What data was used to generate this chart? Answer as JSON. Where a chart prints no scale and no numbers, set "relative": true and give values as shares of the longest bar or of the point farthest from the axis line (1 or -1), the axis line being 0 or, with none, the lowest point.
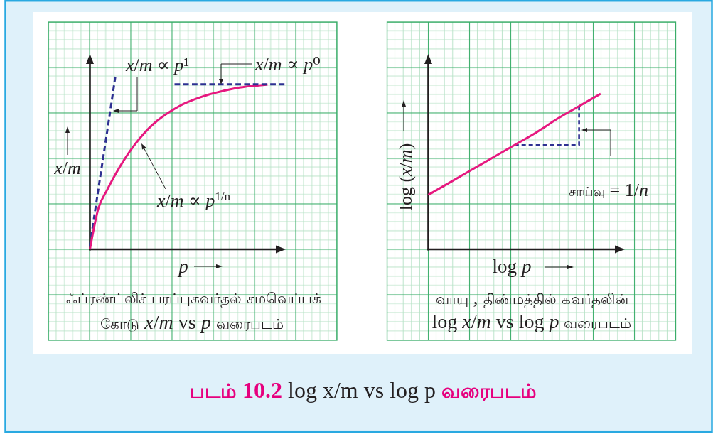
{
  "chart_data": [
    {
      "type": "line",
      "relative": true,
      "xlabel": "p",
      "ylabel": "x/m",
      "categories": [
        null,
        null,
        null,
        null,
        null,
        null,
        null,
        null,
        null,
        null,
        null,
        null,
        null,
        null,
        null,
        null,
        null,
        null,
        null,
        null,
        null,
        null,
        null,
        null
      ],
      "series": [
        {
          "name": "x/m ∝ p¹",
          "color": "#2e3192",
          "line_style": "dashed",
          "values": [
            0.02,
            0.35,
            0.67,
            1,
            null,
            null,
            null,
            null,
            null,
            null,
            null,
            null,
            null,
            null,
            null,
            null,
            null,
            null,
            null,
            null,
            null,
            null,
            null,
            null
          ]
        },
        {
          "name": "x/m ∝ p$^{1/n}$",
          "color": "#e6187f",
          "values": [
            0,
            0.237,
            0.341,
            0.433,
            0.515,
            0.587,
            0.649,
            0.703,
            0.747,
            0.783,
            0.814,
            0.841,
            0.862,
            0.88,
            0.896,
            0.909,
            0.921,
            0.931,
            0.939,
            0.946,
            0.95,
            0.955,
            null,
            null
          ]
        },
        {
          "name": "x/m ∝ p⁰",
          "color": "#2e3192",
          "line_style": "dashed",
          "values": [
            null,
            null,
            null,
            null,
            null,
            null,
            null,
            null,
            null,
            null,
            0.956,
            0.956,
            0.956,
            0.956,
            0.956,
            0.956,
            0.956,
            0.956,
            0.956,
            0.956,
            0.956,
            0.956,
            0.956,
            0.956
          ]
        }
      ],
      "annotations": [
        "ஃப்ரண்ட்லிச் பரப்புகவர்தல் சமவெப்பக்",
        "கோடு x/m vs p வரைபடம்"
      ]
    },
    {
      "type": "line",
      "relative": true,
      "xlabel": "log p",
      "ylabel": "log (x/m)",
      "categories": [
        null,
        null,
        null,
        null,
        null,
        null,
        null,
        null,
        null
      ],
      "series": [
        {
          "color": "#e6187f",
          "values": [
            0.35,
            0.43,
            0.51,
            0.59,
            0.67,
            0.75,
            0.84,
            0.92,
            1
          ]
        }
      ],
      "annotations": [
        "சாய்வு = 1/n",
        "வாயு , திண்மத்தில் கவர்தலின்",
        "log x/m vs log p வரைபடம்",
        "படம் 10.2 log x/m vs log p வரைபடம்"
      ]
    }
  ]
}
